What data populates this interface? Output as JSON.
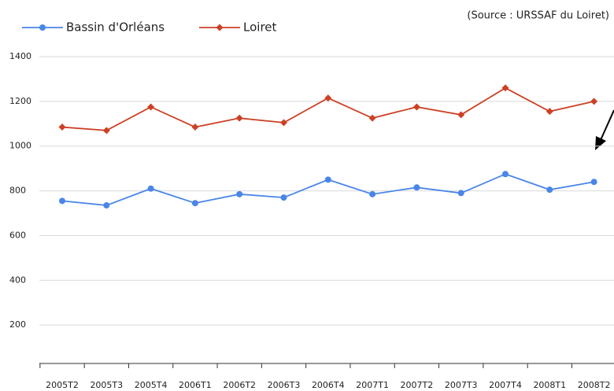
{
  "chart_data": {
    "type": "line",
    "annotation": "(Source : URSSAF du Loiret)",
    "categories": [
      "2005T2",
      "2005T3",
      "2005T4",
      "2006T1",
      "2006T2",
      "2006T3",
      "2006T4",
      "2007T1",
      "2007T2",
      "2007T3",
      "2007T4",
      "2008T1",
      "2008T2"
    ],
    "series": [
      {
        "name": "Bassin d'Orléans",
        "color": "#4a86e8",
        "marker": "circle",
        "values": [
          755,
          735,
          810,
          745,
          785,
          770,
          850,
          785,
          815,
          790,
          875,
          805,
          840
        ]
      },
      {
        "name": "Loiret",
        "color": "#cc4125",
        "marker": "diamond",
        "values": [
          1085,
          1070,
          1175,
          1085,
          1125,
          1105,
          1215,
          1125,
          1175,
          1140,
          1260,
          1155,
          1200
        ]
      }
    ],
    "ylim": [
      0,
      1400
    ],
    "yticks": [
      200,
      400,
      600,
      800,
      1000,
      1200,
      1400
    ],
    "grid": true,
    "legend": "top-left"
  }
}
